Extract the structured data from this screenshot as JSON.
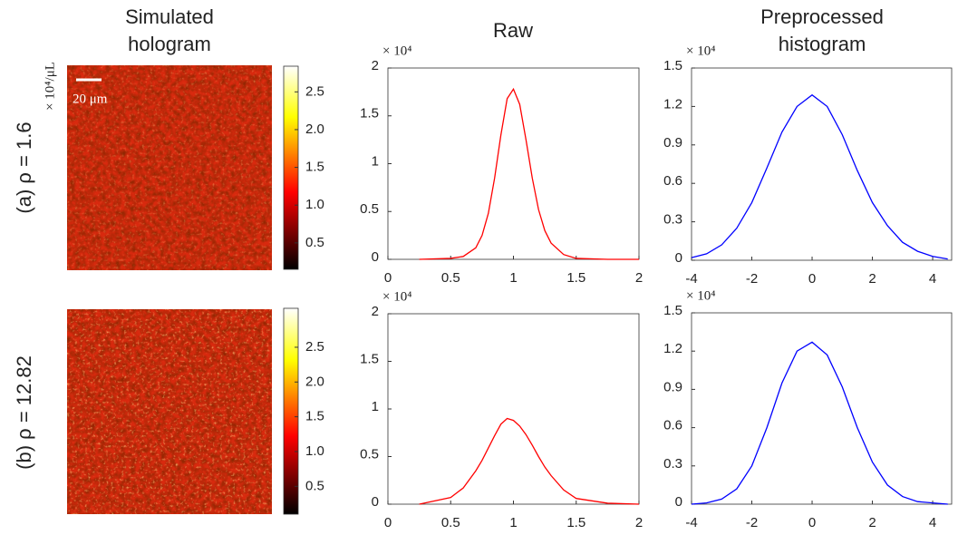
{
  "column_headers": [
    [
      "Simulated",
      "hologram"
    ],
    [
      "Raw"
    ],
    [
      "Preprocessed",
      "histogram"
    ]
  ],
  "row_labels": [
    {
      "text": "(a) ρ = 1.6",
      "unit": "× 10⁴/μL"
    },
    {
      "text": "(b) ρ = 12.82"
    }
  ],
  "chart_data": [
    {
      "type": "image",
      "colormap": "hot",
      "annotation": "20 μm",
      "colorbar": {
        "ylim": [
          0.15,
          2.84
        ],
        "yticks": [
          0.5,
          {
            "value": 1,
            "label": "1.0"
          },
          1.5,
          {
            "value": 2,
            "label": "2.0"
          },
          2.5
        ]
      }
    },
    {
      "type": "line",
      "exponent_label": "× 10⁴",
      "xlim": [
        0,
        2
      ],
      "xticks": [
        0,
        0.5,
        1,
        1.5,
        2
      ],
      "ylim": [
        0,
        2
      ],
      "yticks": [
        0,
        0.5,
        1,
        1.5,
        2
      ],
      "x": [
        0.25,
        0.5,
        0.6,
        0.7,
        0.75,
        0.8,
        0.85,
        0.9,
        0.95,
        1,
        1.05,
        1.1,
        1.15,
        1.2,
        1.25,
        1.3,
        1.4,
        1.5,
        1.75,
        2
      ],
      "series": [
        {
          "color": "#ff0000",
          "values": [
            0,
            0.01,
            0.03,
            0.12,
            0.25,
            0.48,
            0.85,
            1.3,
            1.68,
            1.78,
            1.62,
            1.25,
            0.85,
            0.52,
            0.3,
            0.17,
            0.05,
            0.01,
            0,
            0
          ]
        }
      ]
    },
    {
      "type": "line",
      "exponent_label": "× 10⁴",
      "xlim": [
        -4,
        4.63
      ],
      "xticks": [
        -4,
        -2,
        0,
        2,
        4
      ],
      "ylim": [
        0,
        1.5
      ],
      "yticks": [
        0,
        0.3,
        0.6,
        0.9,
        1.2,
        1.5
      ],
      "x": [
        -4,
        -3.5,
        -3,
        -2.5,
        -2,
        -1.5,
        -1,
        -0.5,
        0,
        0.5,
        1,
        1.5,
        2,
        2.5,
        3,
        3.5,
        4,
        4.5
      ],
      "series": [
        {
          "color": "#0000ff",
          "values": [
            0.02,
            0.05,
            0.12,
            0.25,
            0.45,
            0.72,
            1.0,
            1.2,
            1.29,
            1.2,
            0.98,
            0.7,
            0.45,
            0.27,
            0.14,
            0.07,
            0.03,
            0.01
          ]
        }
      ]
    },
    {
      "type": "image",
      "colormap": "hot",
      "colorbar": {
        "ylim": [
          0.1,
          3.06
        ],
        "yticks": [
          0.5,
          {
            "value": 1,
            "label": "1.0"
          },
          1.5,
          {
            "value": 2,
            "label": "2.0"
          },
          2.5
        ]
      }
    },
    {
      "type": "line",
      "exponent_label": "× 10⁴",
      "xlim": [
        0,
        2
      ],
      "xticks": [
        0,
        0.5,
        1,
        1.5,
        2
      ],
      "ylim": [
        0,
        2
      ],
      "yticks": [
        0,
        0.5,
        1,
        1.5,
        2
      ],
      "x": [
        0.25,
        0.5,
        0.6,
        0.7,
        0.75,
        0.8,
        0.85,
        0.9,
        0.95,
        1,
        1.05,
        1.1,
        1.15,
        1.2,
        1.25,
        1.3,
        1.4,
        1.5,
        1.75,
        2
      ],
      "series": [
        {
          "color": "#ff0000",
          "values": [
            0,
            0.07,
            0.17,
            0.35,
            0.46,
            0.59,
            0.72,
            0.84,
            0.9,
            0.88,
            0.82,
            0.73,
            0.62,
            0.5,
            0.39,
            0.3,
            0.15,
            0.06,
            0.01,
            0
          ]
        }
      ]
    },
    {
      "type": "line",
      "exponent_label": "× 10⁴",
      "xlim": [
        -4,
        4.63
      ],
      "xticks": [
        -4,
        -2,
        0,
        2,
        4
      ],
      "ylim": [
        0,
        1.5
      ],
      "yticks": [
        0,
        0.3,
        0.6,
        0.9,
        1.2,
        1.5
      ],
      "x": [
        -4,
        -3.5,
        -3,
        -2.5,
        -2,
        -1.5,
        -1,
        -0.5,
        0,
        0.5,
        1,
        1.5,
        2,
        2.5,
        3,
        3.5,
        4,
        4.5
      ],
      "series": [
        {
          "color": "#0000ff",
          "values": [
            0,
            0.01,
            0.04,
            0.12,
            0.3,
            0.6,
            0.95,
            1.2,
            1.27,
            1.17,
            0.92,
            0.6,
            0.33,
            0.15,
            0.06,
            0.02,
            0.01,
            0
          ]
        }
      ]
    }
  ]
}
